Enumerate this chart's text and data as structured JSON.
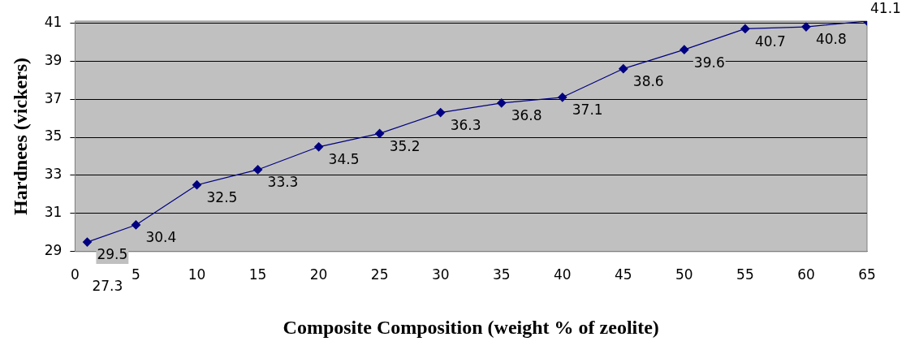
{
  "chart_data": {
    "type": "line",
    "xlabel": "Composite Composition (weight % of zeolite)",
    "ylabel": "Hardnees (vickers)",
    "x": [
      1,
      5,
      10,
      15,
      20,
      25,
      30,
      35,
      40,
      45,
      50,
      55,
      60,
      65
    ],
    "series": [
      {
        "color": "#000080",
        "values": [
          29.5,
          30.4,
          32.5,
          33.3,
          34.5,
          35.2,
          36.3,
          36.8,
          37.1,
          38.6,
          39.6,
          40.7,
          40.8,
          41.1
        ]
      }
    ],
    "xlim": [
      0,
      65
    ],
    "xticks": [
      0,
      5,
      10,
      15,
      20,
      25,
      30,
      35,
      40,
      45,
      50,
      55,
      60,
      65
    ],
    "ylim": [
      29,
      41.1
    ],
    "yticks": [
      29,
      31,
      33,
      35,
      37,
      39,
      41
    ],
    "grid": "y",
    "legend": false,
    "marker": "diamond",
    "line_style": "solid",
    "data_labels": true,
    "annotations": [
      "27.3"
    ]
  }
}
